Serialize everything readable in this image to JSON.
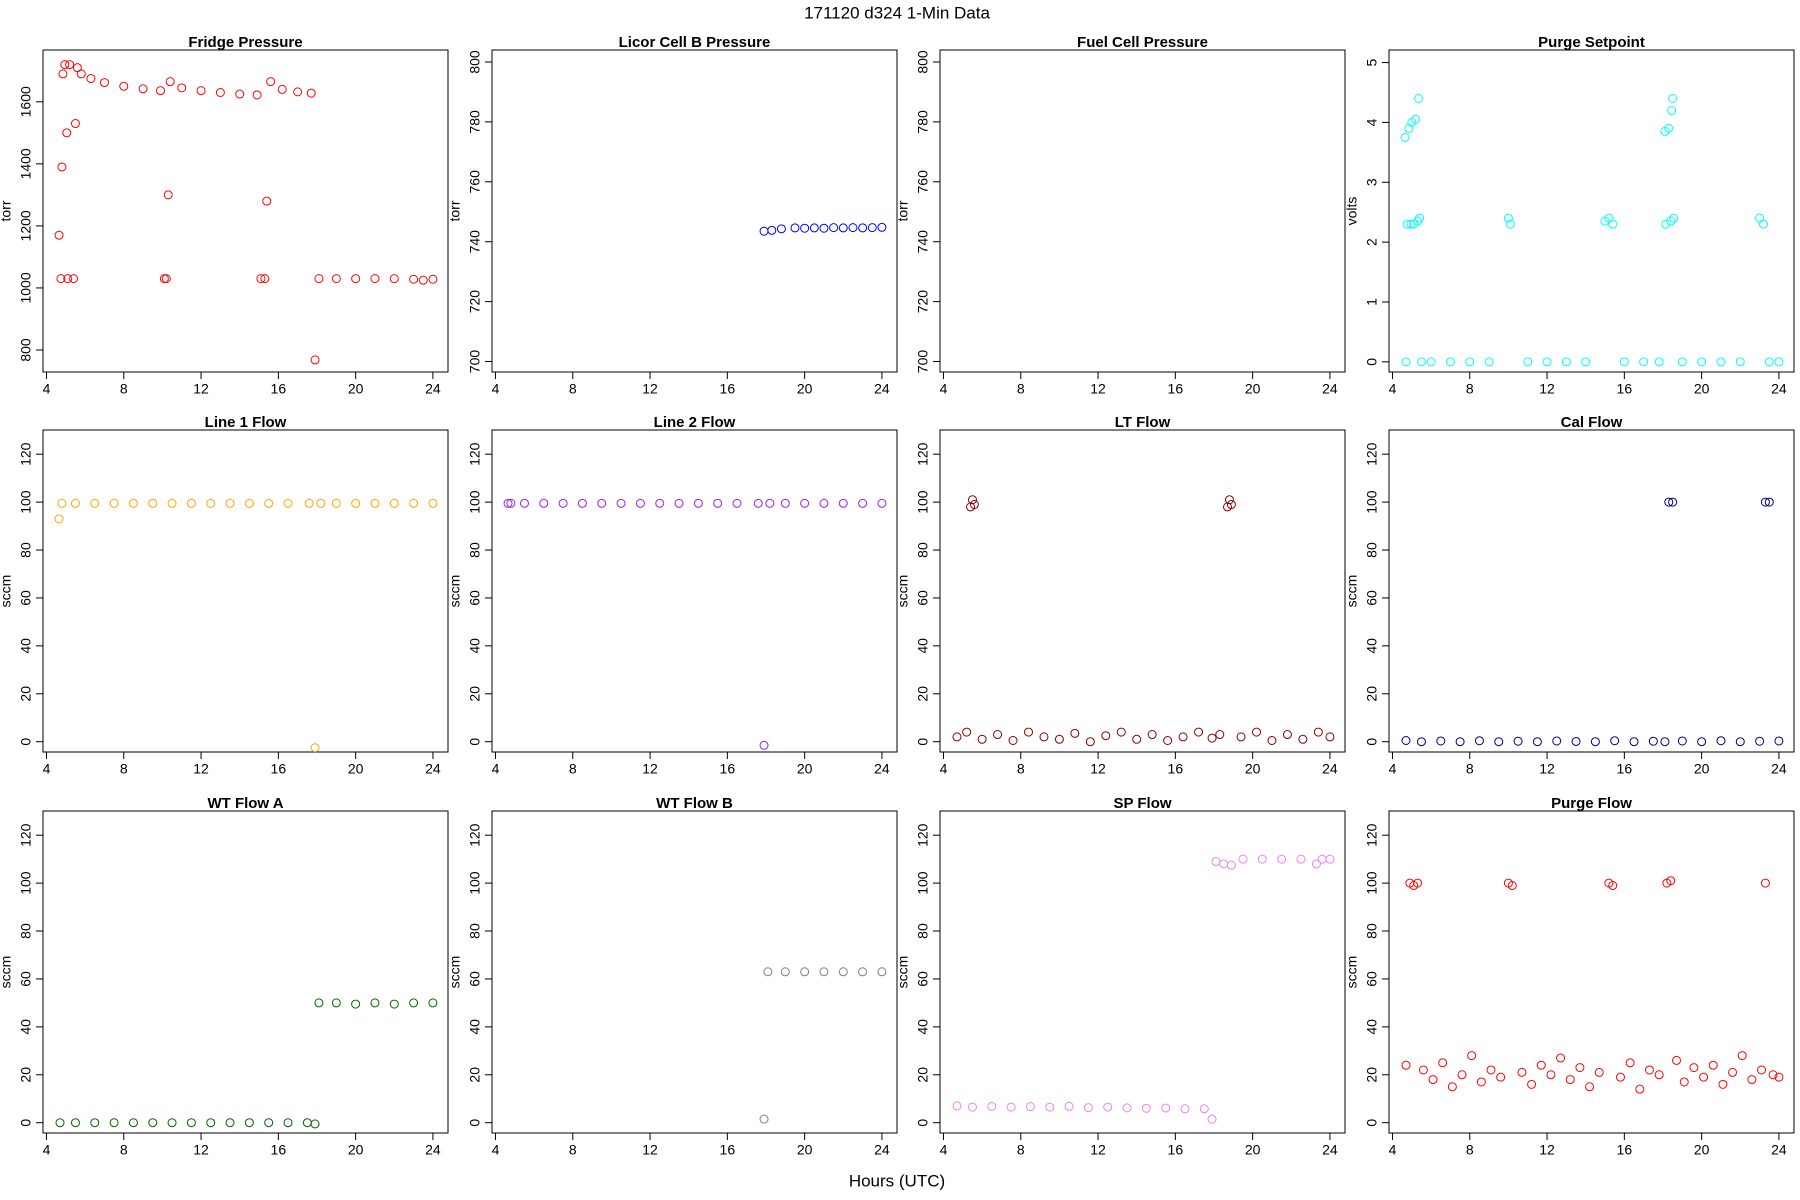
{
  "title": "171120   d324   1-Min Data",
  "xlabel": "Hours (UTC)",
  "chart_data": [
    {
      "type": "scatter",
      "title": "Fridge Pressure",
      "ylabel": "torr",
      "color": "#ff0000",
      "xlim": [
        3.82,
        24.78
      ],
      "xticks": [
        4,
        8,
        12,
        16,
        20,
        24
      ],
      "ylim": [
        729,
        1767
      ],
      "yticks": [
        800,
        1000,
        1200,
        1400,
        1600
      ],
      "x": [
        4.65,
        4.75,
        4.8,
        4.85,
        4.95,
        5.05,
        5.1,
        5.2,
        5.4,
        5.5,
        5.6,
        5.8,
        6.3,
        7,
        8,
        9,
        9.9,
        10.1,
        10.2,
        10.3,
        10.4,
        11,
        12,
        13,
        14,
        14.9,
        15.1,
        15.3,
        15.4,
        15.6,
        16.2,
        17,
        17.7,
        17.9,
        18.1,
        19,
        20,
        21,
        22,
        23,
        23.5,
        24
      ],
      "values": [
        1170,
        1030,
        1390,
        1690,
        1720,
        1500,
        1030,
        1720,
        1030,
        1530,
        1710,
        1690,
        1675,
        1662,
        1650,
        1642,
        1636,
        1030,
        1030,
        1300,
        1665,
        1645,
        1636,
        1630,
        1625,
        1622,
        1030,
        1030,
        1280,
        1665,
        1640,
        1632,
        1628,
        768,
        1030,
        1030,
        1030,
        1030,
        1030,
        1028,
        1025,
        1028
      ]
    },
    {
      "type": "scatter",
      "title": "Licor Cell B Pressure",
      "ylabel": "torr",
      "color": "#0000ff",
      "xlim": [
        3.82,
        24.78
      ],
      "xticks": [
        4,
        8,
        12,
        16,
        20,
        24
      ],
      "ylim": [
        696.5,
        804
      ],
      "yticks": [
        700,
        720,
        740,
        760,
        780,
        800
      ],
      "x": [
        17.9,
        18.3,
        18.8,
        19.5,
        20,
        20.5,
        21,
        21.5,
        22,
        22.5,
        23,
        23.5,
        24
      ],
      "values": [
        743.5,
        743.8,
        744.3,
        744.6,
        744.5,
        744.6,
        744.5,
        744.7,
        744.6,
        744.7,
        744.6,
        744.7,
        744.8
      ]
    },
    {
      "type": "scatter",
      "title": "Fuel Cell Pressure",
      "ylabel": "torr",
      "color": "#000000",
      "xlim": [
        3.82,
        24.78
      ],
      "xticks": [
        4,
        8,
        12,
        16,
        20,
        24
      ],
      "ylim": [
        696.5,
        804
      ],
      "yticks": [
        700,
        720,
        740,
        760,
        780,
        800
      ],
      "x": [],
      "values": []
    },
    {
      "type": "scatter",
      "title": "Purge Setpoint",
      "ylabel": "volts",
      "color": "#00ffff",
      "xlim": [
        3.82,
        24.78
      ],
      "xticks": [
        4,
        8,
        12,
        16,
        20,
        24
      ],
      "ylim": [
        -0.17,
        5.21
      ],
      "yticks": [
        0,
        1,
        2,
        3,
        4,
        5
      ],
      "x": [
        4.65,
        4.75,
        4.85,
        4.95,
        5.0,
        5.1,
        5.2,
        5.3,
        5.35,
        5.4,
        4.7,
        5.5,
        6,
        7,
        8,
        9,
        10,
        10.1,
        11,
        12,
        13,
        14,
        15,
        15.2,
        15.4,
        16,
        17,
        17.8,
        18.1,
        18.15,
        18.3,
        18.4,
        18.45,
        18.5,
        18.55,
        19,
        20,
        21,
        22,
        23,
        23.2,
        23.5,
        24
      ],
      "values": [
        3.75,
        2.3,
        3.9,
        2.3,
        4.0,
        2.3,
        4.05,
        2.35,
        4.4,
        2.4,
        0,
        0,
        0,
        0,
        0,
        0,
        2.4,
        2.3,
        0,
        0,
        0,
        0,
        2.35,
        2.4,
        2.3,
        0,
        0,
        0,
        3.85,
        2.3,
        3.9,
        2.35,
        4.2,
        4.4,
        2.4,
        0,
        0,
        0,
        0,
        2.4,
        2.3,
        0,
        0
      ]
    },
    {
      "type": "scatter",
      "title": "Line 1 Flow",
      "ylabel": "sccm",
      "color": "#ffa500",
      "xlim": [
        3.82,
        24.78
      ],
      "xticks": [
        4,
        8,
        12,
        16,
        20,
        24
      ],
      "ylim": [
        -4.3,
        130.1
      ],
      "yticks": [
        0,
        20,
        40,
        60,
        80,
        100,
        120
      ],
      "x": [
        4.65,
        4.8,
        5.5,
        6.5,
        7.5,
        8.5,
        9.5,
        10.5,
        11.5,
        12.5,
        13.5,
        14.5,
        15.5,
        16.5,
        17.6,
        17.9,
        18.2,
        19,
        20,
        21,
        22,
        23,
        24
      ],
      "values": [
        93,
        99.5,
        99.5,
        99.5,
        99.5,
        99.5,
        99.5,
        99.5,
        99.5,
        99.5,
        99.5,
        99.5,
        99.5,
        99.5,
        99.5,
        -2.5,
        99.5,
        99.5,
        99.5,
        99.5,
        99.5,
        99.5,
        99.5
      ]
    },
    {
      "type": "scatter",
      "title": "Line 2 Flow",
      "ylabel": "sccm",
      "color": "#a020f0",
      "xlim": [
        3.82,
        24.78
      ],
      "xticks": [
        4,
        8,
        12,
        16,
        20,
        24
      ],
      "ylim": [
        -4.3,
        130.1
      ],
      "yticks": [
        0,
        20,
        40,
        60,
        80,
        100,
        120
      ],
      "x": [
        4.65,
        4.8,
        5.5,
        6.5,
        7.5,
        8.5,
        9.5,
        10.5,
        11.5,
        12.5,
        13.5,
        14.5,
        15.5,
        16.5,
        17.6,
        17.9,
        18.2,
        19,
        20,
        21,
        22,
        23,
        24
      ],
      "values": [
        99.5,
        99.5,
        99.5,
        99.5,
        99.5,
        99.5,
        99.5,
        99.5,
        99.5,
        99.5,
        99.5,
        99.5,
        99.5,
        99.5,
        99.5,
        -1.5,
        99.5,
        99.5,
        99.5,
        99.5,
        99.5,
        99.5,
        99.5
      ]
    },
    {
      "type": "scatter",
      "title": "LT Flow",
      "ylabel": "sccm",
      "color": "#8b0000",
      "xlim": [
        3.82,
        24.78
      ],
      "xticks": [
        4,
        8,
        12,
        16,
        20,
        24
      ],
      "ylim": [
        -4.3,
        130.1
      ],
      "yticks": [
        0,
        20,
        40,
        60,
        80,
        100,
        120
      ],
      "x": [
        4.7,
        5.2,
        5.4,
        5.5,
        5.6,
        6,
        6.8,
        7.6,
        8.4,
        9.2,
        10,
        10.8,
        11.6,
        12.4,
        13.2,
        14,
        14.8,
        15.6,
        16.4,
        17.2,
        17.9,
        18.3,
        18.7,
        18.8,
        18.9,
        19.4,
        20.2,
        21,
        21.8,
        22.6,
        23.4,
        24
      ],
      "values": [
        2,
        4,
        98,
        101,
        99,
        1,
        3,
        0.5,
        4,
        2,
        1,
        3.5,
        0,
        2.5,
        4,
        1,
        3,
        0.5,
        2,
        4,
        1.5,
        3,
        98,
        101,
        99,
        2,
        4,
        0.5,
        3,
        1,
        4,
        2
      ]
    },
    {
      "type": "scatter",
      "title": "Cal Flow",
      "ylabel": "sccm",
      "color": "#000080",
      "xlim": [
        3.82,
        24.78
      ],
      "xticks": [
        4,
        8,
        12,
        16,
        20,
        24
      ],
      "ylim": [
        -4.3,
        130.1
      ],
      "yticks": [
        0,
        20,
        40,
        60,
        80,
        100,
        120
      ],
      "x": [
        4.7,
        5.5,
        6.5,
        7.5,
        8.5,
        9.5,
        10.5,
        11.5,
        12.5,
        13.5,
        14.5,
        15.5,
        16.5,
        17.5,
        18.1,
        18.3,
        18.5,
        19,
        20,
        21,
        22,
        23,
        23.3,
        23.5,
        24
      ],
      "values": [
        0.5,
        0,
        0.3,
        0,
        0.4,
        0,
        0.2,
        0,
        0.3,
        0.1,
        0,
        0.4,
        0,
        0.2,
        0,
        100,
        100,
        0.3,
        0,
        0.4,
        0,
        0.2,
        100,
        100,
        0.3
      ]
    },
    {
      "type": "scatter",
      "title": "WT Flow A",
      "ylabel": "sccm",
      "color": "#006400",
      "xlim": [
        3.82,
        24.78
      ],
      "xticks": [
        4,
        8,
        12,
        16,
        20,
        24
      ],
      "ylim": [
        -4.3,
        130.1
      ],
      "yticks": [
        0,
        20,
        40,
        60,
        80,
        100,
        120
      ],
      "x": [
        4.7,
        5.5,
        6.5,
        7.5,
        8.5,
        9.5,
        10.5,
        11.5,
        12.5,
        13.5,
        14.5,
        15.5,
        16.5,
        17.5,
        17.9,
        18.1,
        19,
        20,
        21,
        22,
        23,
        24
      ],
      "values": [
        0,
        0,
        0,
        0,
        0,
        0,
        0,
        0,
        0,
        0,
        0,
        0,
        0,
        0,
        -0.5,
        50,
        50,
        49.5,
        50,
        49.5,
        50,
        50
      ]
    },
    {
      "type": "scatter",
      "title": "WT Flow B",
      "ylabel": "sccm",
      "color": "#808080",
      "xlim": [
        3.82,
        24.78
      ],
      "xticks": [
        4,
        8,
        12,
        16,
        20,
        24
      ],
      "ylim": [
        -4.3,
        130.1
      ],
      "yticks": [
        0,
        20,
        40,
        60,
        80,
        100,
        120
      ],
      "x": [
        17.9,
        18.1,
        19,
        20,
        21,
        22,
        23,
        24
      ],
      "values": [
        1.5,
        63,
        63,
        63,
        63,
        63,
        63,
        63
      ]
    },
    {
      "type": "scatter",
      "title": "SP Flow",
      "ylabel": "sccm",
      "color": "#ee82ee",
      "xlim": [
        3.82,
        24.78
      ],
      "xticks": [
        4,
        8,
        12,
        16,
        20,
        24
      ],
      "ylim": [
        -4.3,
        130.1
      ],
      "yticks": [
        0,
        20,
        40,
        60,
        80,
        100,
        120
      ],
      "x": [
        4.7,
        5.5,
        6.5,
        7.5,
        8.5,
        9.5,
        10.5,
        11.5,
        12.5,
        13.5,
        14.5,
        15.5,
        16.5,
        17.5,
        17.9,
        18.1,
        18.5,
        18.9,
        19.5,
        20.5,
        21.5,
        22.5,
        23.3,
        23.6,
        24
      ],
      "values": [
        7,
        6.5,
        6.8,
        6.5,
        6.7,
        6.5,
        6.8,
        6.3,
        6.5,
        6.2,
        6,
        6.1,
        5.8,
        5.8,
        1.5,
        109,
        108,
        107.5,
        110,
        110,
        110,
        110,
        108,
        110,
        110
      ]
    },
    {
      "type": "scatter",
      "title": "Purge Flow",
      "ylabel": "sccm",
      "color": "#ff0000",
      "xlim": [
        3.82,
        24.78
      ],
      "xticks": [
        4,
        8,
        12,
        16,
        20,
        24
      ],
      "ylim": [
        -4.3,
        130.1
      ],
      "yticks": [
        0,
        20,
        40,
        60,
        80,
        100,
        120
      ],
      "x": [
        4.7,
        4.9,
        5.1,
        5.3,
        5.6,
        6.1,
        6.6,
        7.1,
        7.6,
        8.1,
        8.6,
        9.1,
        9.6,
        10.0,
        10.2,
        10.7,
        11.2,
        11.7,
        12.2,
        12.7,
        13.2,
        13.7,
        14.2,
        14.7,
        15.2,
        15.4,
        15.8,
        16.3,
        16.8,
        17.3,
        17.8,
        18.2,
        18.4,
        18.7,
        19.1,
        19.6,
        20.1,
        20.6,
        21.1,
        21.6,
        22.1,
        22.6,
        23.1,
        23.3,
        23.7,
        24
      ],
      "values": [
        24,
        100,
        99,
        100,
        22,
        18,
        25,
        15,
        20,
        28,
        17,
        22,
        19,
        100,
        99,
        21,
        16,
        24,
        20,
        27,
        18,
        23,
        15,
        21,
        100,
        99,
        19,
        25,
        14,
        22,
        20,
        100,
        101,
        26,
        17,
        23,
        19,
        24,
        16,
        21,
        28,
        18,
        22,
        100,
        20,
        19
      ]
    }
  ]
}
